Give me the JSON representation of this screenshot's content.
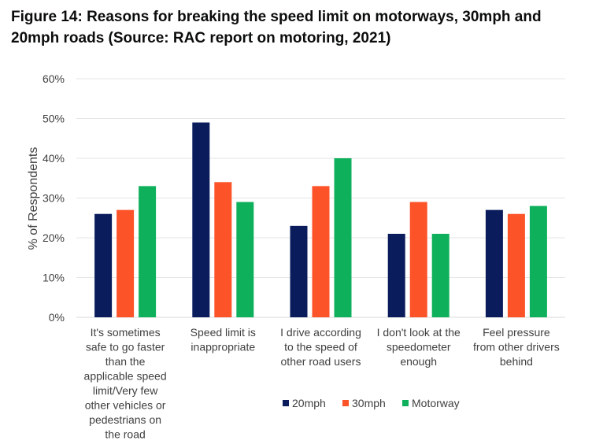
{
  "title": "Figure 14: Reasons for breaking the speed limit on motorways, 30mph and 20mph roads (Source: RAC report on motoring, 2021)",
  "chart_data": {
    "type": "bar",
    "title": "Figure 14: Reasons for breaking the speed limit on motorways, 30mph and 20mph roads (Source: RAC report on motoring, 2021)",
    "xlabel": "",
    "ylabel": "% of Respondents",
    "ylim": [
      0,
      60
    ],
    "yticks": [
      "0%",
      "10%",
      "20%",
      "30%",
      "40%",
      "50%",
      "60%"
    ],
    "grid": true,
    "legend_position": "bottom",
    "categories": [
      [
        "It's sometimes",
        "safe to go faster",
        "than the",
        "applicable speed",
        "limit/Very few",
        "other vehicles or",
        "pedestrians on",
        "the road"
      ],
      [
        "Speed limit is",
        "inappropriate"
      ],
      [
        "I drive according",
        "to the speed of",
        "other road users"
      ],
      [
        "I don't look at the",
        "speedometer",
        "enough"
      ],
      [
        "Feel pressure",
        "from other drivers",
        "behind"
      ]
    ],
    "series": [
      {
        "name": "20mph",
        "color": "#0a1c5c",
        "values": [
          26,
          49,
          23,
          21,
          27
        ]
      },
      {
        "name": "30mph",
        "color": "#fd5329",
        "values": [
          27,
          34,
          33,
          29,
          26
        ]
      },
      {
        "name": "Motorway",
        "color": "#0fb05c",
        "values": [
          33,
          29,
          40,
          21,
          28
        ]
      }
    ]
  }
}
